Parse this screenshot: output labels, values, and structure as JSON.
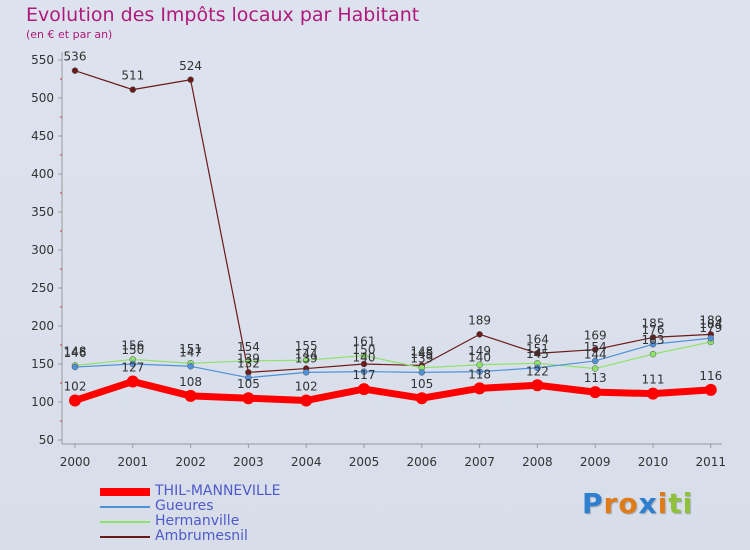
{
  "chart_data": {
    "type": "line",
    "title": "Evolution des Impôts locaux par Habitant",
    "subtitle": "(en € et par an)",
    "xlabel": "",
    "ylabel": "",
    "x": [
      "2000",
      "2001",
      "2002",
      "2003",
      "2004",
      "2005",
      "2006",
      "2007",
      "2008",
      "2009",
      "2010",
      "2011"
    ],
    "ylim": [
      50,
      550
    ],
    "yticks": [
      50,
      100,
      150,
      200,
      250,
      300,
      350,
      400,
      450,
      500,
      550
    ],
    "grid": false,
    "legend_position": "bottom-left",
    "series": [
      {
        "name": "THIL-MANNEVILLE",
        "color": "#ff0000",
        "values": [
          102,
          127,
          108,
          105,
          102,
          117,
          105,
          118,
          122,
          113,
          111,
          116
        ],
        "labels": [
          "102",
          "127",
          "108",
          "105",
          "102",
          "117",
          "105",
          "118",
          "122",
          "113",
          "111",
          "116"
        ]
      },
      {
        "name": "Gueures",
        "color": "#4f90d9",
        "values": [
          146,
          150,
          147,
          132,
          139,
          140,
          139,
          140,
          145,
          154,
          176,
          184
        ],
        "labels": [
          "146",
          "150",
          "147",
          "132",
          "139",
          "140",
          "139",
          "140",
          "145",
          "154",
          "176",
          "184"
        ]
      },
      {
        "name": "Hermanville",
        "color": "#8ee26b",
        "values": [
          148,
          156,
          151,
          154,
          155,
          161,
          145,
          149,
          151,
          144,
          163,
          179
        ],
        "labels": [
          "148",
          "156",
          "151",
          "154",
          "155",
          "161",
          "145",
          "149",
          "151",
          "144",
          "163",
          "179"
        ]
      },
      {
        "name": "Ambrumesnil",
        "color": "#6b1a1a",
        "values": [
          536,
          511,
          524,
          139,
          144,
          150,
          148,
          189,
          164,
          169,
          185,
          189
        ],
        "labels": [
          "536",
          "511",
          "524",
          "139",
          "144",
          "150",
          "148",
          "189",
          "164",
          "169",
          "185",
          "189"
        ]
      }
    ]
  },
  "brand": {
    "text": "Proxiti",
    "letters": [
      "P",
      "r",
      "o",
      "x",
      "i",
      "t",
      "i"
    ],
    "colors": [
      "#2f7fd0",
      "#e07b1a",
      "#e07b1a",
      "#2f7fd0",
      "#e07b1a",
      "#8fc23a",
      "#8fc23a"
    ]
  }
}
